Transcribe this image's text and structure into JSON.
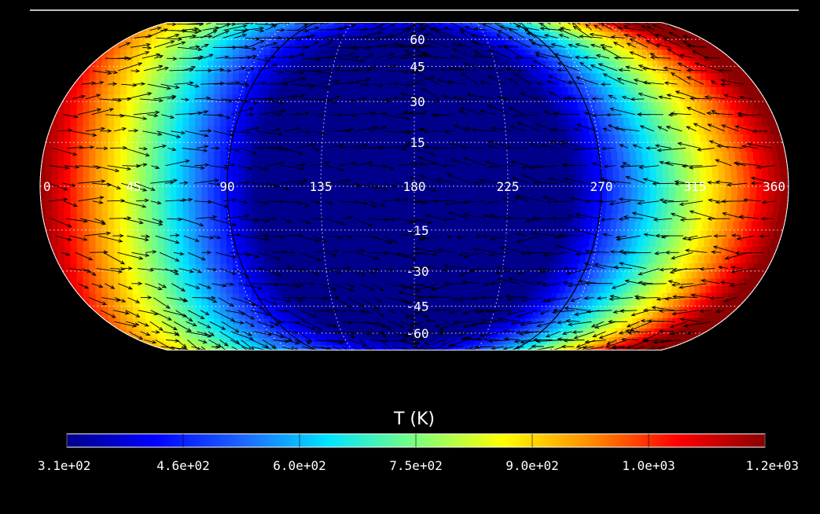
{
  "chart_data": {
    "type": "heatmap",
    "projection": "pseudocylindrical-map",
    "title": "T (K)",
    "longitude_ticks": [
      "0",
      "45",
      "90",
      "135",
      "180",
      "225",
      "270",
      "315",
      "360"
    ],
    "latitude_ticks": [
      "60",
      "45",
      "30",
      "15",
      "-15",
      "-30",
      "-45",
      "-60"
    ],
    "longitude_range": [
      0,
      360
    ],
    "latitude_range": [
      -75,
      75
    ],
    "colorbar": {
      "min": 310,
      "max": 1200,
      "tick_labels": [
        "3.1e+02",
        "4.6e+02",
        "6.0e+02",
        "7.5e+02",
        "9.0e+02",
        "1.0e+03",
        "1.2e+03"
      ],
      "colormap": [
        "#00008b",
        "#0000ff",
        "#1e64ff",
        "#00e5ff",
        "#7cff7c",
        "#ffff00",
        "#ff8c00",
        "#ff0000",
        "#8b0000"
      ]
    },
    "field": {
      "description_cold_center_longitude": 180,
      "hot_longitudes": [
        0,
        360
      ],
      "grid": "dotted",
      "overlay": "wind-vectors"
    }
  }
}
